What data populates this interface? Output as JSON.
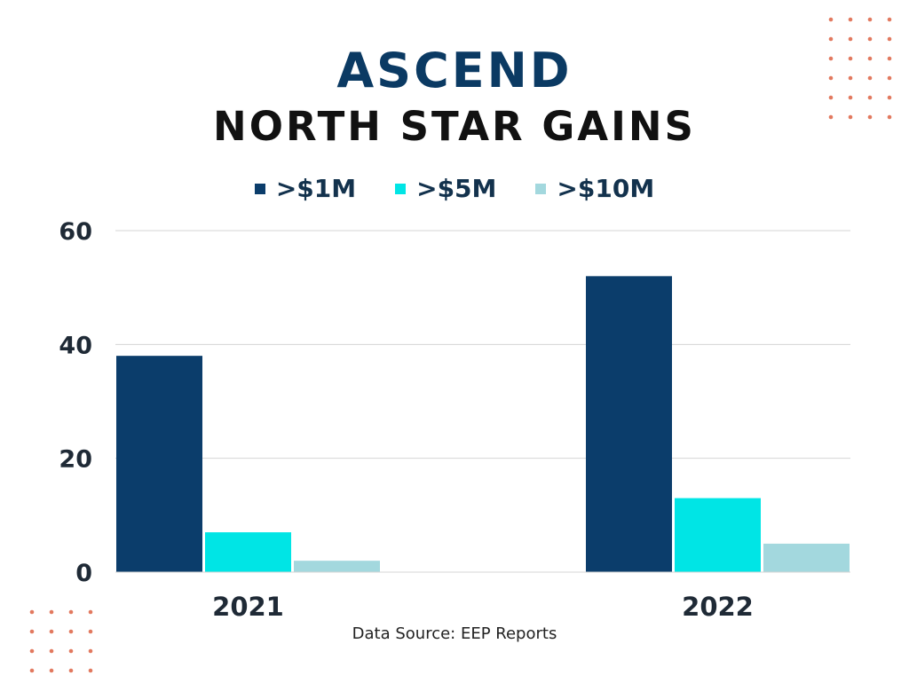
{
  "colors": {
    "title_primary": "#0b3a63",
    "title_secondary": "#111111",
    "gridline": "#d5d5d5",
    "axis_text": "#1f2a36",
    "decor_dots": "#e2795f"
  },
  "decorations": {
    "top_right_dots": {
      "rows": 6,
      "cols": 4
    },
    "bottom_left_dots": {
      "rows": 4,
      "cols": 4
    }
  },
  "chart_data": {
    "type": "bar",
    "title": "ASCEND",
    "subtitle": "NORTH STAR GAINS",
    "categories": [
      "2021",
      "2022"
    ],
    "series": [
      {
        "name": ">$1M",
        "values": [
          38,
          52
        ],
        "color": "#0b3d6b"
      },
      {
        "name": ">$5M",
        "values": [
          7,
          13
        ],
        "color": "#00e5e5"
      },
      {
        "name": ">$10M",
        "values": [
          2,
          5
        ],
        "color": "#a3d8de"
      }
    ],
    "ylim": [
      0,
      60
    ],
    "yticks": [
      0,
      20,
      40,
      60
    ],
    "grid": true,
    "legend_position": "top-center",
    "source": "Data Source: EEP Reports"
  }
}
